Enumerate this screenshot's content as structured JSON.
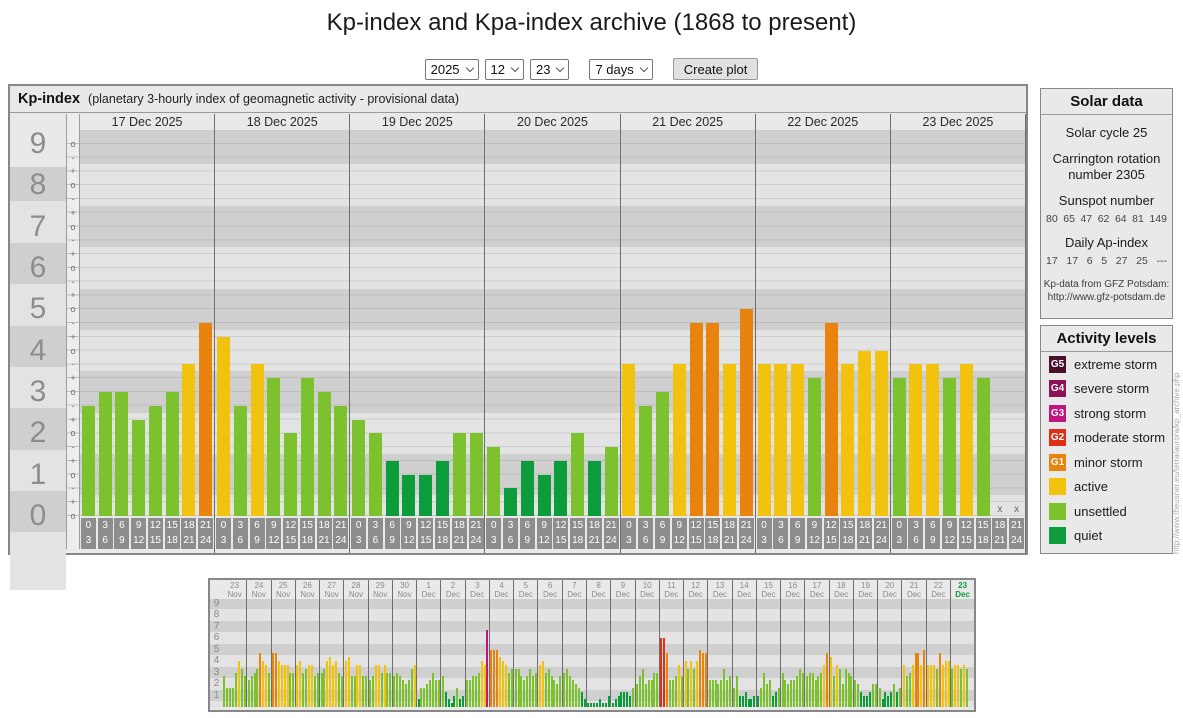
{
  "page_title": "Kp-index and Kpa-index archive (1868 to present)",
  "controls": {
    "year": "2025",
    "month": "12",
    "day": "23",
    "range": "7 days",
    "create_button": "Create plot"
  },
  "kp_colors": {
    "quiet": "#0d9c3c",
    "unsettled": "#7cc12e",
    "active": "#f2c30e",
    "g1": "#e8830e",
    "g2": "#dd3016",
    "g3": "#c0147e",
    "g4": "#8c1255",
    "g5": "#49102d"
  },
  "solar_panel": {
    "title": "Solar data",
    "solar_cycle": "Solar cycle 25",
    "carrington": "Carrington rotation number 2305",
    "sunspot_label": "Sunspot number",
    "sunspot_values": [
      "80",
      "65",
      "47",
      "62",
      "64",
      "81",
      "149"
    ],
    "ap_label": "Daily Ap-index",
    "ap_values": [
      "17",
      "17",
      "6",
      "5",
      "27",
      "25",
      "---"
    ],
    "note_line1": "Kp-data from GFZ Potsdam:",
    "note_line2": "http://www.gfz-potsdam.de"
  },
  "activity_panel": {
    "title": "Activity levels",
    "levels": [
      {
        "badge": "G5",
        "label": "extreme storm",
        "color": "#49102d"
      },
      {
        "badge": "G4",
        "label": "severe storm",
        "color": "#8c1255"
      },
      {
        "badge": "G3",
        "label": "strong storm",
        "color": "#c0147e"
      },
      {
        "badge": "G2",
        "label": "moderate storm",
        "color": "#dd3016"
      },
      {
        "badge": "G1",
        "label": "minor storm",
        "color": "#e8830e"
      },
      {
        "badge": "",
        "label": "active",
        "color": "#f2c30e"
      },
      {
        "badge": "",
        "label": "unsettled",
        "color": "#7cc12e"
      },
      {
        "badge": "",
        "label": "quiet",
        "color": "#0d9c3c"
      }
    ]
  },
  "watermark": "http://www.theusner.eu/terra/aurora/kp_archive.php",
  "chart_data": [
    {
      "id": "kp-main",
      "type": "bar",
      "title": "Kp-index",
      "subtitle": "(planetary 3-hourly index of geomagnetic activity - provisional data)",
      "ylabel": "Kp",
      "ylim": [
        0,
        9.33
      ],
      "y_ticks": [
        9,
        8,
        7,
        6,
        5,
        4,
        3,
        2,
        1,
        0
      ],
      "sub_ticks": [
        "+",
        "o",
        "-"
      ],
      "grid": "banded",
      "missing_marker": "x",
      "time_bins": [
        [
          "0",
          "3"
        ],
        [
          "3",
          "6"
        ],
        [
          "6",
          "9"
        ],
        [
          "9",
          "12"
        ],
        [
          "12",
          "15"
        ],
        [
          "15",
          "18"
        ],
        [
          "18",
          "21"
        ],
        [
          "21",
          "24"
        ]
      ],
      "days": [
        {
          "label": "17 Dec 2025",
          "kp": [
            2.67,
            3,
            3,
            2.33,
            2.67,
            3,
            3.67,
            4.67
          ]
        },
        {
          "label": "18 Dec 2025",
          "kp": [
            4.33,
            2.67,
            3.67,
            3.33,
            2,
            3.33,
            3,
            2.67
          ]
        },
        {
          "label": "19 Dec 2025",
          "kp": [
            2.33,
            2,
            1.33,
            1,
            1,
            1.33,
            2,
            2
          ]
        },
        {
          "label": "20 Dec 2025",
          "kp": [
            1.67,
            0.67,
            1.33,
            1,
            1.33,
            2,
            1.33,
            1.67
          ]
        },
        {
          "label": "21 Dec 2025",
          "kp": [
            3.67,
            2.67,
            3,
            3.67,
            4.67,
            4.67,
            3.67,
            5
          ]
        },
        {
          "label": "22 Dec 2025",
          "kp": [
            3.67,
            3.67,
            3.67,
            3.33,
            4.67,
            3.67,
            4,
            4
          ]
        },
        {
          "label": "23 Dec 2025",
          "kp": [
            3.33,
            3.67,
            3.67,
            3.33,
            3.67,
            3.33,
            null,
            null
          ]
        }
      ]
    },
    {
      "id": "kp-overview",
      "type": "bar",
      "ylim": [
        0,
        9.4
      ],
      "y_ticks": [
        9,
        8,
        7,
        6,
        5,
        4,
        3,
        2,
        1
      ],
      "grid": "banded",
      "days": [
        {
          "day": "23",
          "month": "Nov",
          "kp": [
            2.67,
            1.67,
            1.67,
            1.67,
            3,
            4,
            3.33,
            2.67
          ]
        },
        {
          "day": "24",
          "month": "Nov",
          "kp": [
            2.33,
            2.67,
            3,
            3.33,
            4.67,
            4,
            3.67,
            3
          ]
        },
        {
          "day": "25",
          "month": "Nov",
          "kp": [
            4.67,
            4.67,
            4,
            3.67,
            3.67,
            3.67,
            3,
            3
          ]
        },
        {
          "day": "26",
          "month": "Nov",
          "kp": [
            3.67,
            4,
            3,
            3.33,
            3.67,
            3.67,
            2.67,
            3
          ]
        },
        {
          "day": "27",
          "month": "Nov",
          "kp": [
            3,
            3.33,
            4,
            4.33,
            3.67,
            4,
            3,
            2.67
          ]
        },
        {
          "day": "28",
          "month": "Nov",
          "kp": [
            4,
            4.33,
            2.67,
            2.67,
            3.67,
            3.67,
            2.67,
            2.67
          ]
        },
        {
          "day": "29",
          "month": "Nov",
          "kp": [
            2.33,
            2.67,
            3.67,
            3.67,
            3,
            3.67,
            3,
            3
          ]
        },
        {
          "day": "30",
          "month": "Nov",
          "kp": [
            2.67,
            3,
            2.67,
            2.33,
            2,
            2.33,
            3.33,
            3.67
          ]
        },
        {
          "day": "1",
          "month": "Dec",
          "kp": [
            0.67,
            1.67,
            1.67,
            2,
            2.33,
            3,
            2.33,
            2.33
          ]
        },
        {
          "day": "2",
          "month": "Dec",
          "kp": [
            2.67,
            1.33,
            0.67,
            0.33,
            1,
            1.67,
            0.67,
            1
          ]
        },
        {
          "day": "3",
          "month": "Dec",
          "kp": [
            2.33,
            2.33,
            2.67,
            2.67,
            3,
            4,
            3.67,
            6.67
          ]
        },
        {
          "day": "4",
          "month": "Dec",
          "kp": [
            5,
            5,
            5,
            4.33,
            4,
            3.67,
            3,
            3.33
          ]
        },
        {
          "day": "5",
          "month": "Dec",
          "kp": [
            3.33,
            3.33,
            2.67,
            2.33,
            2.67,
            3.33,
            2.67,
            3
          ]
        },
        {
          "day": "6",
          "month": "Dec",
          "kp": [
            3.67,
            4,
            3,
            3.33,
            2.67,
            2.33,
            2,
            2.67
          ]
        },
        {
          "day": "7",
          "month": "Dec",
          "kp": [
            3,
            3.33,
            2.67,
            2.33,
            2,
            1.67,
            1.33,
            0.67
          ]
        },
        {
          "day": "8",
          "month": "Dec",
          "kp": [
            0.33,
            0.33,
            0.33,
            0.33,
            0.67,
            0.33,
            0.33,
            1
          ]
        },
        {
          "day": "9",
          "month": "Dec",
          "kp": [
            0.33,
            0.67,
            1,
            1.33,
            1.33,
            1.33,
            1,
            1.67
          ]
        },
        {
          "day": "10",
          "month": "Dec",
          "kp": [
            2,
            2.67,
            3.33,
            2,
            2.33,
            2.33,
            3,
            3
          ]
        },
        {
          "day": "11",
          "month": "Dec",
          "kp": [
            6,
            6,
            4.67,
            2.33,
            2.33,
            2.67,
            3.67,
            2.67
          ]
        },
        {
          "day": "12",
          "month": "Dec",
          "kp": [
            4,
            3.33,
            4,
            3.33,
            4,
            5,
            4.67,
            4.67
          ]
        },
        {
          "day": "13",
          "month": "Dec",
          "kp": [
            2.33,
            2.33,
            2.33,
            2,
            2.33,
            3.33,
            2.33,
            2.67
          ]
        },
        {
          "day": "14",
          "month": "Dec",
          "kp": [
            1.67,
            2.67,
            1,
            1,
            1.33,
            0.67,
            0.67,
            1
          ]
        },
        {
          "day": "15",
          "month": "Dec",
          "kp": [
            1,
            1.67,
            3,
            2,
            2.33,
            1,
            1.33,
            1.67
          ]
        },
        {
          "day": "16",
          "month": "Dec",
          "kp": [
            3,
            2.33,
            2,
            2.33,
            2.33,
            2.67,
            3.33,
            3
          ]
        },
        {
          "day": "17",
          "month": "Dec",
          "kp": [
            2.67,
            3,
            3,
            2.33,
            2.67,
            3,
            3.67,
            4.67
          ]
        },
        {
          "day": "18",
          "month": "Dec",
          "kp": [
            4.33,
            2.67,
            3.67,
            3.33,
            2,
            3.33,
            3,
            2.67
          ]
        },
        {
          "day": "19",
          "month": "Dec",
          "kp": [
            2.33,
            2,
            1.33,
            1,
            1,
            1.33,
            2,
            2
          ]
        },
        {
          "day": "20",
          "month": "Dec",
          "kp": [
            1.67,
            0.67,
            1.33,
            1,
            1.33,
            2,
            1.33,
            1.67
          ]
        },
        {
          "day": "21",
          "month": "Dec",
          "kp": [
            3.67,
            2.67,
            3,
            3.67,
            4.67,
            4.67,
            3.67,
            5
          ]
        },
        {
          "day": "22",
          "month": "Dec",
          "kp": [
            3.67,
            3.67,
            3.67,
            3.33,
            4.67,
            3.67,
            4,
            4
          ]
        },
        {
          "day": "23",
          "month": "Dec",
          "kp": [
            3.33,
            3.67,
            3.67,
            3.33,
            3.67,
            3.33,
            null,
            null
          ],
          "highlight": true
        }
      ]
    }
  ]
}
